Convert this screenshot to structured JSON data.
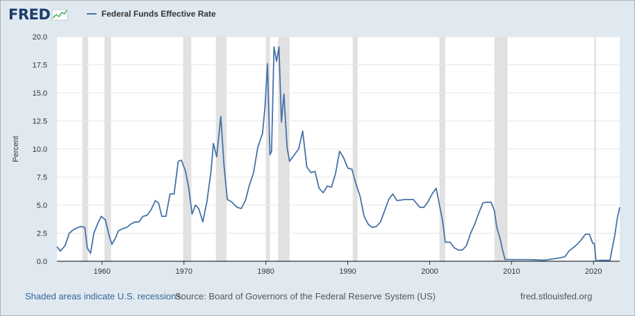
{
  "logo": {
    "text": "FRED",
    "icon": "fred-logo-chart-icon"
  },
  "legend": {
    "series_name": "Federal Funds Effective Rate",
    "color": "#4572a7"
  },
  "footer": {
    "recession_note": "Shaded areas indicate U.S. recessions.",
    "source": "Source: Board of Governors of the Federal Reserve System (US)",
    "site": "fred.stlouisfed.org"
  },
  "colors": {
    "plot_bg": "#ffffff",
    "frame_bg": "#e1e9f0",
    "line": "#4572a7",
    "recession": "#e1e1e1"
  },
  "chart_data": {
    "type": "line",
    "title": "",
    "xlabel": "",
    "ylabel": "Percent",
    "xlim": [
      1954.5,
      2023.2
    ],
    "ylim": [
      0,
      20
    ],
    "grid": "horizontal",
    "x_ticks": [
      1960,
      1970,
      1980,
      1990,
      2000,
      2010,
      2020
    ],
    "x_tick_labels": [
      "1960",
      "1970",
      "1980",
      "1990",
      "2000",
      "2010",
      "2020"
    ],
    "y_ticks": [
      0,
      2.5,
      5,
      7.5,
      10,
      12.5,
      15,
      17.5,
      20
    ],
    "y_tick_labels": [
      "0.0",
      "2.5",
      "5.0",
      "7.5",
      "10.0",
      "12.5",
      "15.0",
      "17.5",
      "20.0"
    ],
    "recessions": [
      [
        1957.6,
        1958.3
      ],
      [
        1960.3,
        1961.1
      ],
      [
        1969.9,
        1970.9
      ],
      [
        1973.9,
        1975.2
      ],
      [
        1980.0,
        1980.5
      ],
      [
        1981.5,
        1982.9
      ],
      [
        1990.6,
        1991.2
      ],
      [
        2001.2,
        2001.9
      ],
      [
        2007.9,
        2009.5
      ],
      [
        2020.1,
        2020.3
      ]
    ],
    "series": [
      {
        "name": "Federal Funds Effective Rate",
        "x": [
          1954.5,
          1954.9,
          1955.5,
          1956.0,
          1956.5,
          1957.0,
          1957.5,
          1957.9,
          1958.2,
          1958.6,
          1959.0,
          1959.5,
          1959.9,
          1960.4,
          1960.9,
          1961.2,
          1961.6,
          1962.0,
          1962.5,
          1963.0,
          1963.5,
          1964.0,
          1964.5,
          1965.0,
          1965.5,
          1966.0,
          1966.5,
          1966.9,
          1967.3,
          1967.8,
          1968.3,
          1968.8,
          1969.3,
          1969.7,
          1970.2,
          1970.6,
          1971.0,
          1971.4,
          1971.8,
          1972.3,
          1972.8,
          1973.3,
          1973.6,
          1974.0,
          1974.5,
          1974.9,
          1975.3,
          1975.8,
          1976.5,
          1977.0,
          1977.5,
          1978.0,
          1978.5,
          1979.0,
          1979.6,
          1979.9,
          1980.2,
          1980.5,
          1980.7,
          1981.0,
          1981.3,
          1981.6,
          1981.9,
          1982.2,
          1982.6,
          1982.9,
          1983.5,
          1984.0,
          1984.5,
          1985.0,
          1985.5,
          1986.0,
          1986.5,
          1987.0,
          1987.5,
          1988.0,
          1988.5,
          1989.0,
          1989.5,
          1990.0,
          1990.5,
          1991.0,
          1991.5,
          1992.0,
          1992.5,
          1993.0,
          1993.5,
          1994.0,
          1994.5,
          1995.0,
          1995.5,
          1996.0,
          1997.0,
          1998.0,
          1998.8,
          1999.3,
          1999.8,
          2000.3,
          2000.8,
          2001.2,
          2001.6,
          2001.9,
          2002.5,
          2003.0,
          2003.5,
          2004.0,
          2004.5,
          2005.0,
          2005.5,
          2006.0,
          2006.5,
          2007.0,
          2007.5,
          2007.9,
          2008.2,
          2008.6,
          2008.9,
          2009.2,
          2010.0,
          2012.0,
          2014.0,
          2015.9,
          2016.5,
          2017.0,
          2017.5,
          2018.0,
          2018.5,
          2019.0,
          2019.5,
          2019.9,
          2020.1,
          2020.3,
          2021.0,
          2022.0,
          2022.3,
          2022.6,
          2022.9,
          2023.2
        ],
        "values": [
          1.3,
          0.9,
          1.4,
          2.5,
          2.8,
          3.0,
          3.1,
          3.0,
          1.2,
          0.7,
          2.5,
          3.4,
          4.0,
          3.7,
          2.2,
          1.5,
          2.0,
          2.7,
          2.9,
          3.0,
          3.3,
          3.5,
          3.5,
          4.0,
          4.1,
          4.6,
          5.4,
          5.2,
          4.0,
          4.0,
          6.0,
          6.0,
          8.9,
          9.0,
          8.0,
          6.5,
          4.2,
          5.0,
          4.7,
          3.5,
          5.3,
          8.0,
          10.5,
          9.3,
          12.9,
          8.5,
          5.5,
          5.3,
          4.8,
          4.7,
          5.4,
          6.8,
          7.9,
          10.1,
          11.4,
          13.8,
          17.6,
          9.5,
          9.8,
          19.1,
          17.8,
          19.1,
          12.4,
          14.9,
          10.1,
          8.9,
          9.5,
          10.0,
          11.6,
          8.4,
          7.9,
          8.0,
          6.5,
          6.1,
          6.7,
          6.6,
          7.8,
          9.8,
          9.2,
          8.3,
          8.2,
          6.9,
          5.8,
          4.0,
          3.3,
          3.0,
          3.1,
          3.5,
          4.5,
          5.5,
          6.0,
          5.4,
          5.5,
          5.5,
          4.8,
          4.8,
          5.3,
          6.0,
          6.5,
          5.0,
          3.5,
          1.7,
          1.7,
          1.2,
          1.0,
          1.0,
          1.4,
          2.5,
          3.3,
          4.3,
          5.2,
          5.26,
          5.25,
          4.5,
          3.0,
          2.0,
          1.0,
          0.16,
          0.15,
          0.15,
          0.09,
          0.3,
          0.4,
          0.9,
          1.2,
          1.5,
          1.9,
          2.4,
          2.4,
          1.6,
          1.6,
          0.05,
          0.08,
          0.08,
          1.2,
          2.3,
          3.8,
          4.8
        ]
      }
    ]
  }
}
